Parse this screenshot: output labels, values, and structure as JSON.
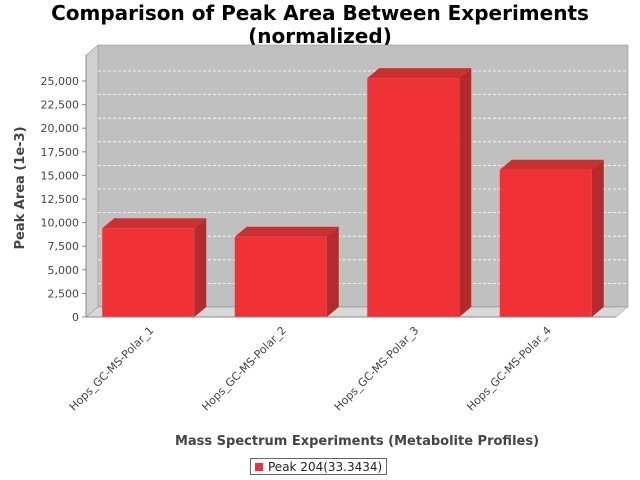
{
  "chart_data": {
    "type": "bar",
    "title_lines": [
      "Comparison of Peak Area Between Experiments",
      "(normalized)"
    ],
    "xlabel": "Mass Spectrum Experiments (Metabolite Profiles)",
    "ylabel": "Peak Area (1e-3)",
    "categories": [
      "Hops_GC-MS-Polar_1",
      "Hops_GC-MS-Polar_2",
      "Hops_GC-MS-Polar_3",
      "Hops_GC-MS-Polar_4"
    ],
    "series": [
      {
        "name": "Peak 204(33.3434)",
        "values": [
          9400,
          8500,
          25300,
          15600
        ]
      }
    ],
    "ylim": [
      0,
      25000
    ],
    "yticks": [
      0,
      2500,
      5000,
      7500,
      10000,
      12500,
      15000,
      17500,
      20000,
      22500,
      25000
    ],
    "ytick_labels": [
      "0",
      "2,500",
      "5,000",
      "7,500",
      "10,000",
      "12,500",
      "15,000",
      "17,500",
      "20,000",
      "22,500",
      "25,000"
    ],
    "grid": true,
    "legend_position": "bottom-center",
    "colors": {
      "bar_front": "#f03236",
      "bar_side": "#b52a2c",
      "bar_top": "#c9302f",
      "plot_back": "#c0c0c0",
      "plot_floor": "#d8d8d8",
      "gridline": "#ffffff"
    }
  }
}
